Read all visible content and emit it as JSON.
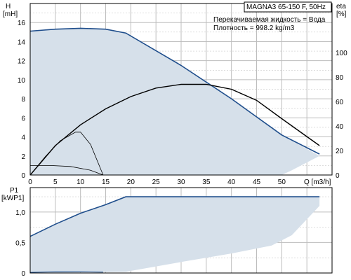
{
  "colors": {
    "envelope_fill": "#d6e0ea",
    "curve_blue": "#1f4e8c",
    "curve_black": "#000000",
    "grid": "#bdbdbd",
    "axis": "#000000"
  },
  "chart_data": [
    {
      "type": "line",
      "title": "MAGNA3 65-150 F, 50Hz",
      "annotations": [
        "Перекачиваемая жидкость = Вода",
        "Плотность = 998.2 kg/m3"
      ],
      "xlabel": "Q [m3/h]",
      "ylabel_top": "H",
      "ylabel_bottom": "[mH]",
      "y2label": "eta",
      "y2unit": "[%]",
      "xlim": [
        0,
        60
      ],
      "ylim": [
        0,
        18
      ],
      "y2lim": [
        0,
        140
      ],
      "xticks": [
        0,
        5,
        10,
        15,
        20,
        25,
        30,
        35,
        40,
        45,
        50
      ],
      "yticks": [
        0,
        2,
        4,
        6,
        8,
        10,
        12,
        14,
        16
      ],
      "y2ticks": [
        0,
        20,
        40,
        60,
        80,
        100
      ],
      "grid": true,
      "series": [
        {
          "role": "operating-envelope",
          "x": [
            0,
            0,
            5,
            10,
            15,
            19,
            30,
            40,
            50,
            57.5,
            57.5,
            52,
            50
          ],
          "y": [
            0,
            15.1,
            15.3,
            15.4,
            15.3,
            14.9,
            11.5,
            8.0,
            4.2,
            2.0,
            2.0,
            0.5,
            0
          ]
        },
        {
          "role": "max-head-curve",
          "x": [
            0,
            5,
            10,
            15,
            19,
            30,
            40,
            50,
            57.5
          ],
          "y": [
            15.1,
            15.3,
            15.4,
            15.3,
            14.9,
            11.5,
            8.0,
            4.2,
            2.2
          ]
        },
        {
          "role": "efficiency-max",
          "axis": "eta",
          "x": [
            0,
            5,
            10,
            15,
            20,
            25,
            30,
            35,
            40,
            45,
            50,
            57.5
          ],
          "y": [
            0,
            24,
            41,
            54,
            64,
            71,
            74,
            74,
            70,
            61,
            46,
            24
          ]
        },
        {
          "role": "efficiency-min",
          "axis": "eta",
          "x": [
            0,
            3,
            6,
            9,
            10,
            12,
            14.5
          ],
          "y": [
            0,
            15,
            28,
            35,
            35,
            25,
            0
          ]
        },
        {
          "role": "head-min",
          "x": [
            0,
            4,
            8,
            12,
            14.5
          ],
          "y": [
            1.0,
            1.0,
            0.9,
            0.5,
            0
          ]
        }
      ]
    },
    {
      "type": "line",
      "ylabel_top": "P1",
      "ylabel_bottom": "[kWP1]",
      "xlim": [
        0,
        60
      ],
      "ylim": [
        0,
        1.4
      ],
      "yticks": [
        0,
        0.5,
        1.0
      ],
      "ytick_labels": [
        "0",
        "0,5",
        "1,0"
      ],
      "grid": true,
      "series": [
        {
          "role": "power-envelope",
          "x": [
            0,
            0,
            10,
            19,
            57.5,
            57.5,
            52,
            48,
            40,
            30,
            19,
            0
          ],
          "y": [
            0,
            0.6,
            0.98,
            1.25,
            1.25,
            1.1,
            0.62,
            0.45,
            0.32,
            0.18,
            0.02,
            0
          ]
        },
        {
          "role": "power-max",
          "x": [
            0,
            5,
            10,
            15,
            19,
            57.5
          ],
          "y": [
            0.6,
            0.8,
            0.98,
            1.12,
            1.25,
            1.25
          ]
        },
        {
          "role": "power-min",
          "x": [
            0,
            5,
            10,
            14.5
          ],
          "y": [
            0.01,
            0.02,
            0.02,
            0.015
          ]
        }
      ]
    }
  ]
}
